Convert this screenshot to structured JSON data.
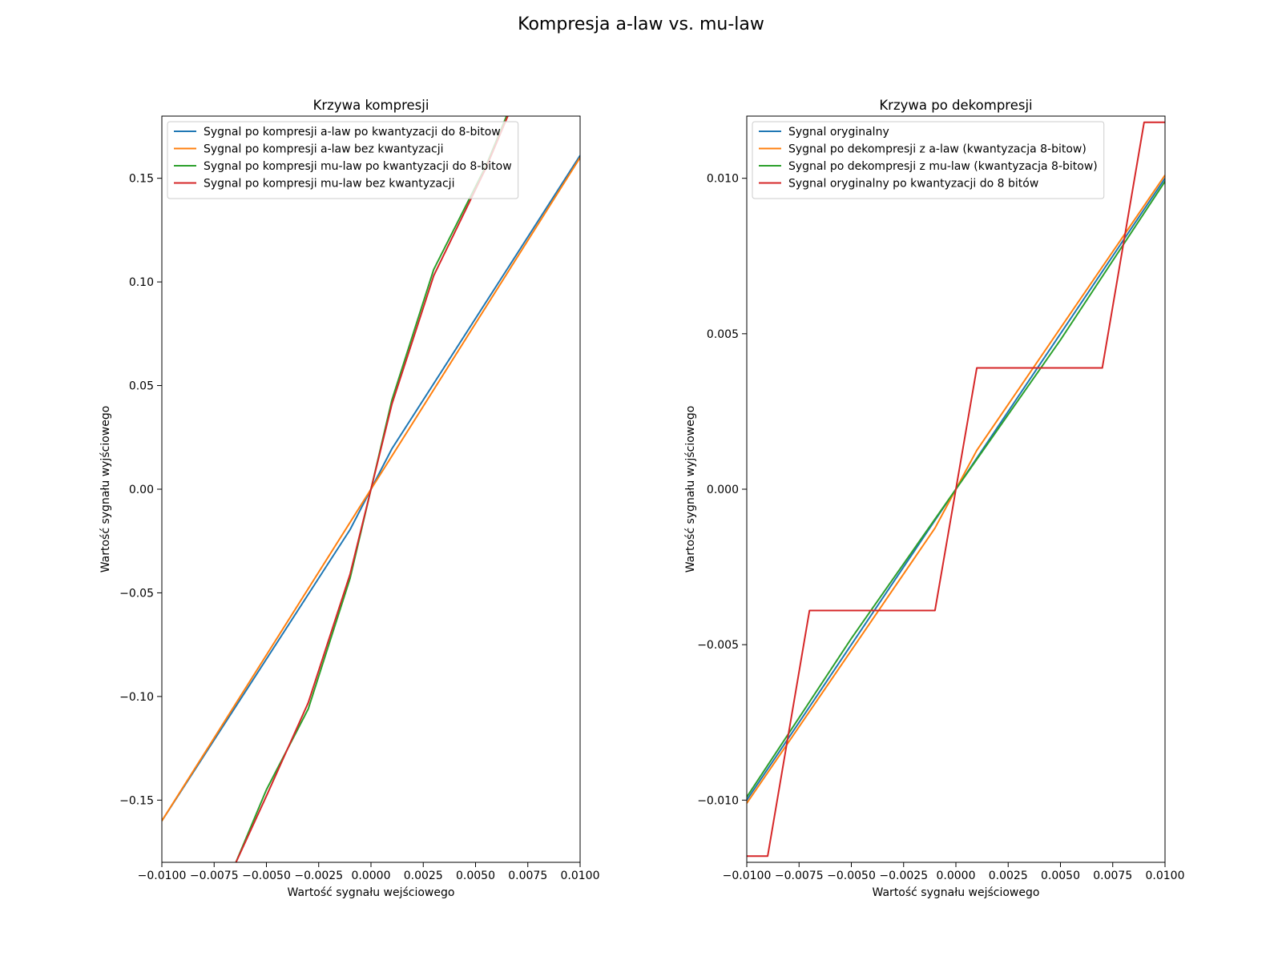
{
  "figure": {
    "title": "Kompresja a-law vs. mu-law"
  },
  "chart_data": [
    {
      "type": "line",
      "title": "Krzywa kompresji",
      "xlabel": "Wartość sygnału wejściowego",
      "ylabel": "Wartość sygnału wyjściowego",
      "xlim": [
        -0.01,
        0.01
      ],
      "ylim": [
        -0.18,
        0.18
      ],
      "xticks": [
        -0.01,
        -0.0075,
        -0.005,
        -0.0025,
        0,
        0.0025,
        0.005,
        0.0075,
        0.01
      ],
      "xtick_labels": [
        "−0.0100",
        "−0.0075",
        "−0.0050",
        "−0.0025",
        "0.0000",
        "0.0025",
        "0.0050",
        "0.0075",
        "0.0100"
      ],
      "yticks": [
        -0.15,
        -0.1,
        -0.05,
        0,
        0.05,
        0.1,
        0.15
      ],
      "ytick_labels": [
        "−0.15",
        "−0.10",
        "−0.05",
        "0.00",
        "0.05",
        "0.10",
        "0.15"
      ],
      "grid": false,
      "legend_position": "top-left",
      "series": [
        {
          "name": "Sygnal po kompresji a-law po kwantyzacji do 8-bitow",
          "color": "#1f77b4",
          "x": [
            -0.01,
            -0.001,
            0,
            0.001,
            0.01
          ],
          "y": [
            -0.16,
            -0.0195,
            0,
            0.0195,
            0.161
          ]
        },
        {
          "name": "Sygnal po kompresji a-law bez kwantyzacji",
          "color": "#ff7f0e",
          "x": [
            -0.01,
            0,
            0.01
          ],
          "y": [
            -0.16,
            0,
            0.16
          ]
        },
        {
          "name": "Sygnal po kompresji mu-law po kwantyzacji do 8-bitow",
          "color": "#2ca02c",
          "x": [
            -0.0075,
            -0.005,
            -0.003,
            -0.001,
            0,
            0.001,
            0.003,
            0.0055,
            0.0075
          ],
          "y": [
            -0.205,
            -0.145,
            -0.106,
            -0.043,
            0,
            0.043,
            0.106,
            0.156,
            0.205
          ]
        },
        {
          "name": "Sygnal po kompresji mu-law bez kwantyzacji",
          "color": "#d62728",
          "x": [
            -0.0075,
            -0.005,
            -0.003,
            -0.001,
            0,
            0.001,
            0.003,
            0.0055,
            0.0075
          ],
          "y": [
            -0.203,
            -0.148,
            -0.103,
            -0.041,
            0,
            0.041,
            0.103,
            0.155,
            0.203
          ]
        }
      ]
    },
    {
      "type": "line",
      "title": "Krzywa po dekompresji",
      "xlabel": "Wartość sygnału wejściowego",
      "ylabel": "Wartość sygnału wyjściowego",
      "xlim": [
        -0.01,
        0.01
      ],
      "ylim": [
        -0.012,
        0.012
      ],
      "xticks": [
        -0.01,
        -0.0075,
        -0.005,
        -0.0025,
        0,
        0.0025,
        0.005,
        0.0075,
        0.01
      ],
      "xtick_labels": [
        "−0.0100",
        "−0.0075",
        "−0.0050",
        "−0.0025",
        "0.0000",
        "0.0025",
        "0.0050",
        "0.0075",
        "0.0100"
      ],
      "yticks": [
        -0.01,
        -0.005,
        0,
        0.005,
        0.01
      ],
      "ytick_labels": [
        "−0.010",
        "−0.005",
        "0.000",
        "0.005",
        "0.010"
      ],
      "grid": false,
      "legend_position": "top-left",
      "series": [
        {
          "name": "Sygnal oryginalny",
          "color": "#1f77b4",
          "x": [
            -0.01,
            0.01
          ],
          "y": [
            -0.01,
            0.01
          ]
        },
        {
          "name": "Sygnal po dekompresji z a-law (kwantyzacja 8-bitow)",
          "color": "#ff7f0e",
          "x": [
            -0.01,
            -0.001,
            0,
            0.001,
            0.01
          ],
          "y": [
            -0.0101,
            -0.00125,
            0,
            0.00125,
            0.0101
          ]
        },
        {
          "name": "Sygnal po dekompresji z mu-law (kwantyzacja 8-bitow)",
          "color": "#2ca02c",
          "x": [
            -0.01,
            -0.005,
            0,
            0.005,
            0.01
          ],
          "y": [
            -0.0099,
            -0.0048,
            0,
            0.0048,
            0.0099
          ]
        },
        {
          "name": "Sygnal oryginalny po kwantyzacji do 8 bitów",
          "color": "#d62728",
          "x": [
            -0.01,
            -0.009,
            -0.007,
            -0.001,
            0.001,
            0.007,
            0.009,
            0.01
          ],
          "y": [
            -0.0118,
            -0.0118,
            -0.0039,
            -0.0039,
            0.0039,
            0.0039,
            0.0118,
            0.0118
          ]
        }
      ]
    }
  ]
}
